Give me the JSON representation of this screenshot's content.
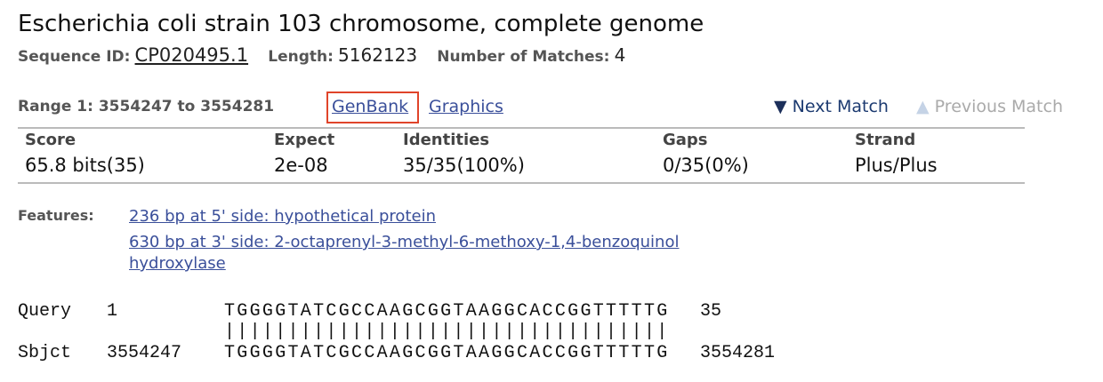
{
  "title": "Escherichia coli strain 103 chromosome, complete genome",
  "meta": [
    {
      "label": "Sequence ID:",
      "value": "CP020495.1"
    },
    {
      "label": "Length:",
      "value": "5162123"
    },
    {
      "label": "Number of Matches:",
      "value": "4"
    }
  ],
  "range": {
    "label": "Range 1: 3554247 to 3554281",
    "links": [
      "GenBank",
      "Graphics"
    ],
    "next": "Next Match",
    "previous": "Previous Match"
  },
  "stats": {
    "headers": [
      "Score",
      "Expect",
      "Identities",
      "Gaps",
      "Strand"
    ],
    "values": [
      "65.8 bits(35)",
      "2e-08",
      "35/35(100%)",
      "0/35(0%)",
      "Plus/Plus"
    ]
  },
  "features": {
    "label": "Features:",
    "links": [
      "236 bp at 5' side: hypothetical protein",
      "630 bp at 3' side: 2-octaprenyl-3-methyl-6-methoxy-1,4-benzoquinol hydroxylase"
    ]
  },
  "alignment": {
    "query": {
      "label": "Query",
      "start": "1",
      "sequence": "TGGGGTATCGCCAAGCGGTAAGGCACCGGTTTTTG",
      "end": "35"
    },
    "match": "|||||||||||||||||||||||||||||||||||",
    "sbjct": {
      "label": "Sbjct",
      "start": "3554247",
      "sequence": "TGGGGTATCGCCAAGCGGTAAGGCACCGGTTTTTG",
      "end": "3554281"
    }
  }
}
